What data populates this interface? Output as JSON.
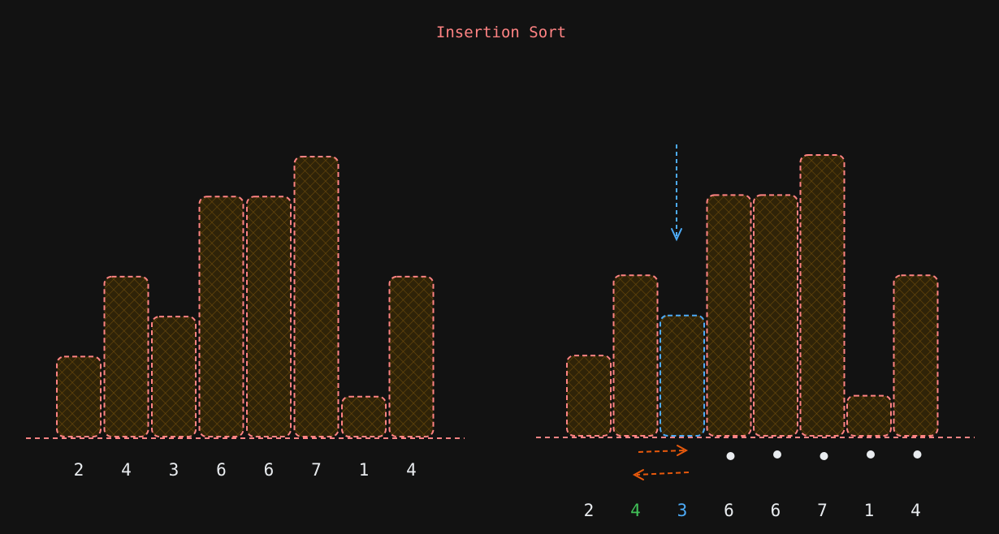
{
  "title": "Insertion Sort",
  "colors": {
    "background": "#121212",
    "bar_stroke": "#ff8383",
    "bar_fill": "#2f2308",
    "hatch": "#6b4a0c",
    "key_stroke": "#4dabf7",
    "label_default": "#e9ecef",
    "label_compared": "#40c057",
    "label_key": "#4dabf7",
    "swap_arrow": "#e8590c",
    "marker": "#e9ecef"
  },
  "before": {
    "values": [
      2,
      4,
      3,
      6,
      6,
      7,
      1,
      4
    ],
    "labels": [
      "2",
      "4",
      "3",
      "6",
      "6",
      "7",
      "1",
      "4"
    ]
  },
  "after": {
    "values": [
      2,
      4,
      3,
      6,
      6,
      7,
      1,
      4
    ],
    "labels": [
      "2",
      "4",
      "3",
      "6",
      "6",
      "7",
      "1",
      "4"
    ],
    "key_index": 2,
    "compared_index": 1,
    "unsorted_marker_indices": [
      3,
      4,
      5,
      6,
      7
    ],
    "icons": {
      "pointer": "down-arrow-icon",
      "swap_forward": "right-arrow-icon",
      "swap_back": "left-arrow-icon",
      "marker": "dot-icon"
    }
  }
}
